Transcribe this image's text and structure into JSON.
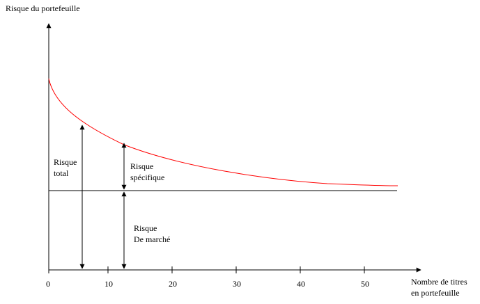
{
  "y_axis_label": "Risque du portefeuille",
  "x_axis_label": [
    "Nombre de titres",
    "en portefeuille"
  ],
  "x_ticks": [
    "0",
    "10",
    "20",
    "30",
    "40",
    "50"
  ],
  "labels": {
    "total": [
      "Risque",
      "total"
    ],
    "specifique": [
      "Risque",
      "spécifique"
    ],
    "marche": [
      "Risque",
      "De marché"
    ]
  },
  "colors": {
    "curve": "#ff0000",
    "ink": "#000000"
  }
}
